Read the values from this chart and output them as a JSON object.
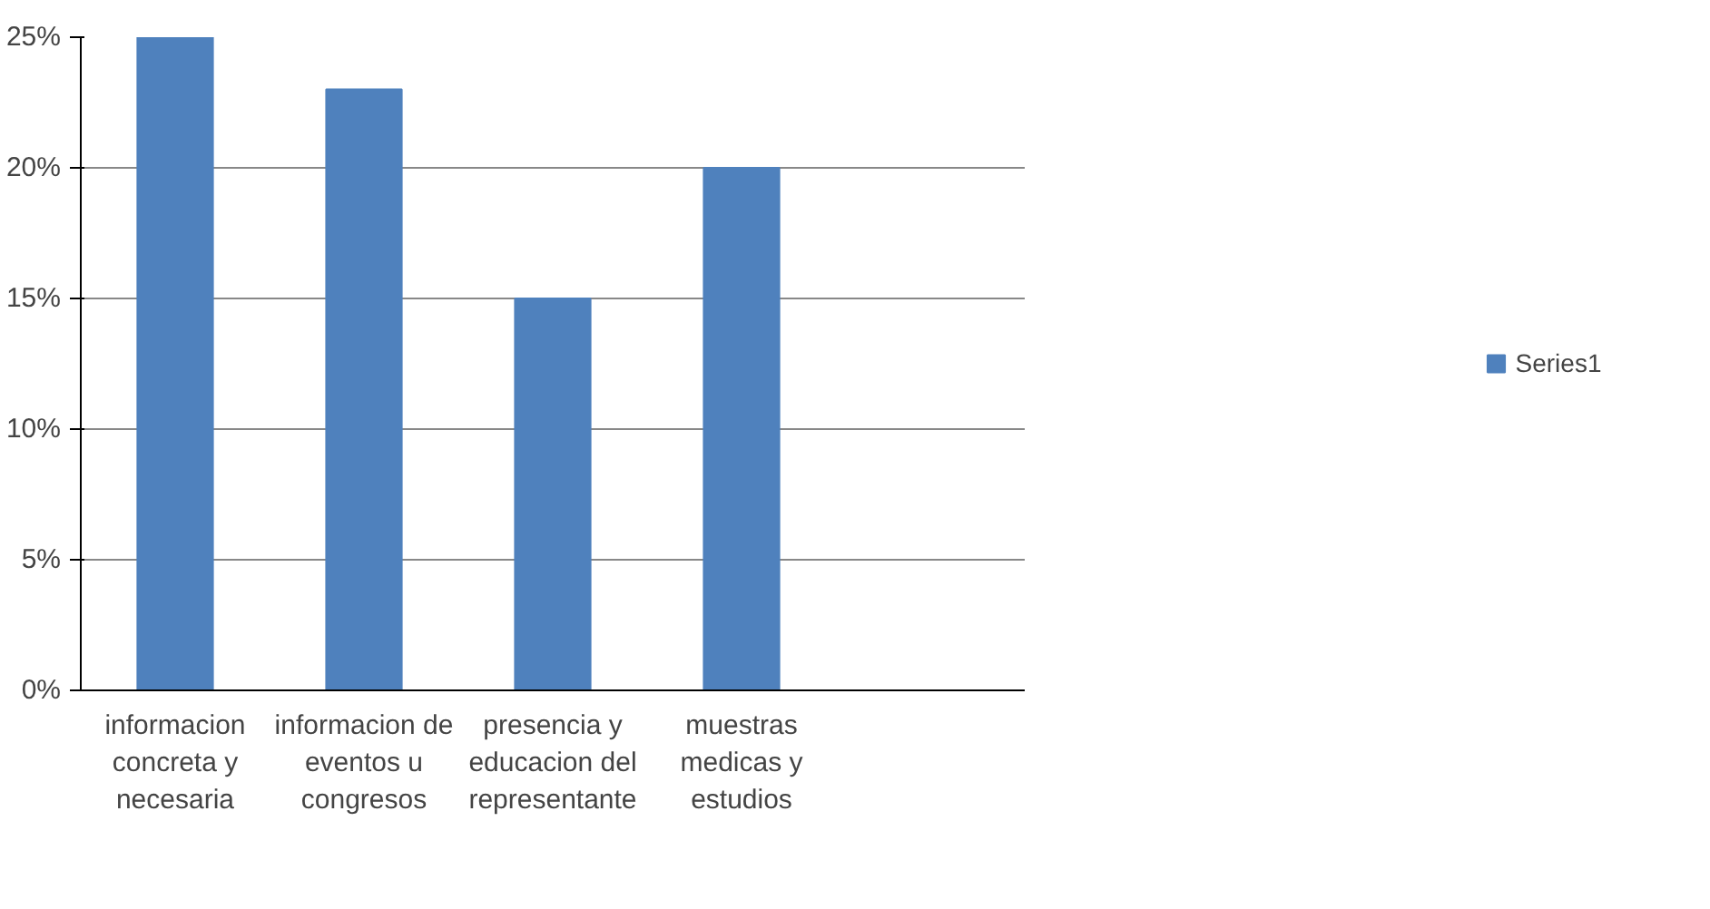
{
  "chart_data": {
    "type": "bar",
    "categories": [
      "informacion concreta y necesaria",
      "informacion de eventos u congresos",
      "presencia y educacion del representante",
      "muestras medicas y estudios",
      null
    ],
    "series": [
      {
        "name": "Series1",
        "color": "#4f81bd",
        "values": [
          25,
          23,
          15,
          20,
          0
        ]
      }
    ],
    "ylim": [
      0,
      25
    ],
    "yticks": [
      {
        "value": 0,
        "label": "0%"
      },
      {
        "value": 5,
        "label": "5%"
      },
      {
        "value": 10,
        "label": "10%"
      },
      {
        "value": 15,
        "label": "15%"
      },
      {
        "value": 20,
        "label": "20%"
      },
      {
        "value": 25,
        "label": "25%"
      }
    ],
    "grid": "y",
    "legend": "right"
  }
}
